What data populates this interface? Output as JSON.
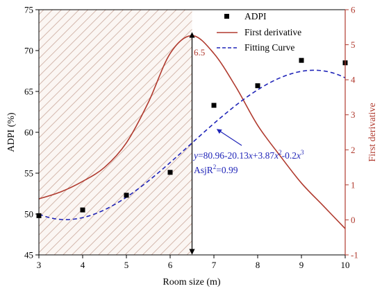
{
  "chart_data": {
    "type": "scatter",
    "x_axis": {
      "label": "Room size (m)",
      "range": [
        3,
        10
      ],
      "ticks": [
        3,
        4,
        5,
        6,
        7,
        8,
        9,
        10
      ]
    },
    "y_axis_left": {
      "label": "ADPI (%)",
      "range": [
        45,
        75
      ],
      "ticks": [
        45,
        50,
        55,
        60,
        65,
        70,
        75
      ]
    },
    "y_axis_right": {
      "label": "First derivative",
      "range": [
        -1,
        6
      ],
      "ticks": [
        -1,
        0,
        1,
        2,
        3,
        4,
        5,
        6
      ],
      "color": "#b03a2e"
    },
    "series": [
      {
        "name": "ADPI",
        "kind": "points",
        "axis": "left",
        "color": "#000000",
        "x": [
          3,
          4,
          5,
          6,
          7,
          8,
          9,
          10
        ],
        "y": [
          49.8,
          50.5,
          52.3,
          55.1,
          63.3,
          65.7,
          68.8,
          68.5
        ]
      },
      {
        "name": "First derivative",
        "kind": "line",
        "axis": "right",
        "color": "#b03a2e",
        "x": [
          3,
          3.5,
          4,
          4.5,
          5,
          5.5,
          6,
          6.5,
          7,
          7.5,
          8,
          8.5,
          9,
          9.5,
          10
        ],
        "y": [
          0.6,
          0.8,
          1.1,
          1.5,
          2.2,
          3.35,
          4.75,
          5.26,
          4.75,
          3.8,
          2.7,
          1.85,
          1.05,
          0.4,
          -0.25
        ]
      },
      {
        "name": "Fitting Curve",
        "kind": "dashed-line",
        "axis": "left",
        "color": "#1f24b8",
        "formula_coefficients": [
          80.96,
          -20.13,
          3.87,
          -0.2
        ],
        "x_range": [
          3,
          10
        ]
      }
    ],
    "shaded_region": {
      "x_from": 3,
      "x_to": 6.5,
      "pattern": "diagonal-hatch",
      "color": "#c9a89b"
    },
    "vertical_marker": {
      "x": 6.5,
      "style": "double-arrow"
    },
    "annotations": {
      "peak_label": "6.5",
      "equation": {
        "y_symbol": "y",
        "p1": "=80.96-20.13",
        "x1": "x",
        "p2": "+3.87",
        "x2": "x",
        "e2": "2",
        "p3": "-0.2",
        "x3": "x",
        "e3": "3"
      },
      "r_squared": {
        "base": "AsjR",
        "exp": "2",
        "rest": "=0.99"
      }
    },
    "legend": {
      "position": "top-right"
    },
    "grid": false
  }
}
